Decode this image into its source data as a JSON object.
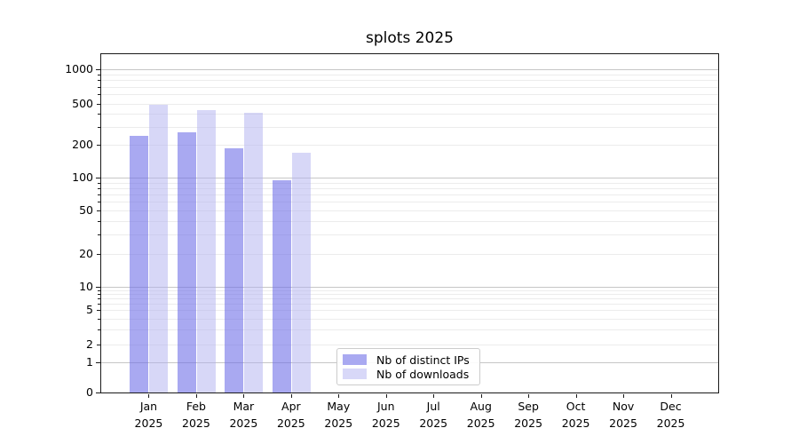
{
  "chart_data": {
    "type": "bar",
    "title": "splots 2025",
    "categories": [
      "Jan",
      "Feb",
      "Mar",
      "Apr",
      "May",
      "Jun",
      "Jul",
      "Aug",
      "Sep",
      "Oct",
      "Nov",
      "Dec"
    ],
    "category_year": "2025",
    "series": [
      {
        "name": "Nb of distinct IPs",
        "color": "#7070e8",
        "opacity": 0.6,
        "legend_color": "#a9a9f1",
        "values": [
          245,
          265,
          186,
          95,
          null,
          null,
          null,
          null,
          null,
          null,
          null,
          null
        ]
      },
      {
        "name": "Nb of downloads",
        "color": "#b0b0f0",
        "opacity": 0.5,
        "legend_color": "#d8d8f8",
        "values": [
          485,
          430,
          410,
          170,
          null,
          null,
          null,
          null,
          null,
          null,
          null,
          null
        ]
      }
    ],
    "y_axis": {
      "scale": "symlog",
      "tick_labels": [
        0,
        1,
        2,
        5,
        10,
        20,
        50,
        100,
        200,
        500,
        1000
      ]
    },
    "x_axis": {
      "label_format": "month-over-year"
    },
    "grid": true,
    "legend_position": "lower center",
    "colors": {
      "grid_minor": "#ececec",
      "grid_major": "#c6c6c6",
      "spine": "#1a1a1a",
      "background": "#ffffff"
    }
  }
}
